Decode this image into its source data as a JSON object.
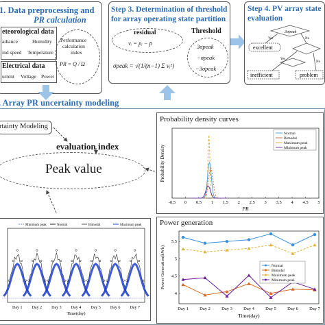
{
  "step1": {
    "title": "1. Data preprocessing and",
    "title2": "PR calculation",
    "met_heading": "eteorological data",
    "met_row1": [
      "adiance",
      "Humidity"
    ],
    "met_row2": [
      "ind speed",
      "Temperature"
    ],
    "elec_heading": "Electrical data",
    "elec_row": [
      "urrent",
      "Voltage",
      "Power"
    ],
    "perf_label": [
      "Performance",
      "calculation",
      "index"
    ],
    "perf_formula": "PR = Q / Ω"
  },
  "step3": {
    "title1": "Step 3. Determination of threshold",
    "title2": "for array operating state partition",
    "residual_label": "residual",
    "residual_formula": "νᵢ = pᵢ − p̄",
    "sigma_formula": "σpeak = √(1/(n−1) Σ νᵢ²)",
    "threshold_label": "Threshold",
    "thresholds": [
      "3σpeak",
      "−σpeak",
      "−3σpeak"
    ]
  },
  "step4": {
    "title1": "Step 4. PV array state",
    "title2": "evaluation",
    "nodes": [
      "3σpeak",
      "Yes",
      "excellent",
      "No",
      "Yes",
      "No",
      "inefficient",
      "problem"
    ]
  },
  "step2": {
    "title": ". Array PR uncertainty modeling",
    "modeling_label": "rtainty Modeling",
    "evaluation_index": "evaluation index",
    "peak_value": "Peak value"
  },
  "density_panel": {
    "title": "Probability density curves",
    "chart_data": {
      "type": "line",
      "xlabel": "PR",
      "ylabel": "Probability Density",
      "xlim": [
        -0.5,
        5
      ],
      "x_ticks": [
        "-0.5",
        "0",
        "0.5",
        "1",
        "1.5",
        "2",
        "2.5",
        "3",
        "3.5",
        "4",
        "4.5",
        "5"
      ],
      "legend": [
        "Normal",
        "Bimodal",
        "Maximum peak",
        "Minimum peak"
      ],
      "legend_position": "top-right",
      "colors": [
        "#4da3e6",
        "#c9744a",
        "#e3b23c",
        "#6b3fa0"
      ]
    }
  },
  "timeseries_panel": {
    "legend": [
      "Minimum peak",
      "Normal",
      "Bimodal",
      "Maximum peak"
    ],
    "x_ticks": [
      "Day 1",
      "Day 2",
      "Day 3",
      "Day 4",
      "Day 5",
      "Day 6",
      "Day 7"
    ],
    "xlabel": "Time(day)"
  },
  "power_panel": {
    "title": "Power generation",
    "chart_data": {
      "type": "line",
      "categories": [
        "Day 1",
        "Day 2",
        "Day 3",
        "Day 4",
        "Day 5",
        "Day 6",
        "Day 7"
      ],
      "xlabel": "Time(day)",
      "ylabel": "Power Generation(kWh)",
      "y_ticks": [
        "4",
        "4.5",
        "5",
        "5.5"
      ],
      "ylim": [
        3.7,
        5.8
      ],
      "series": [
        {
          "name": "Normal",
          "color": "#3a8fd9",
          "values": [
            5.62,
            5.45,
            5.5,
            5.55,
            5.72,
            5.4,
            5.7
          ]
        },
        {
          "name": "Bimodal",
          "color": "#d2691e",
          "values": [
            4.25,
            3.95,
            4.05,
            4.28,
            4.0,
            4.12,
            4.1
          ]
        },
        {
          "name": "Maximum peak",
          "color": "#e3b23c",
          "values": [
            5.28,
            5.2,
            5.25,
            5.3,
            5.4,
            5.15,
            5.4
          ]
        },
        {
          "name": "Minimum peak",
          "color": "#6a1b9a",
          "values": [
            4.4,
            4.45,
            3.92,
            4.52,
            3.88,
            4.33,
            4.12
          ]
        }
      ]
    }
  }
}
